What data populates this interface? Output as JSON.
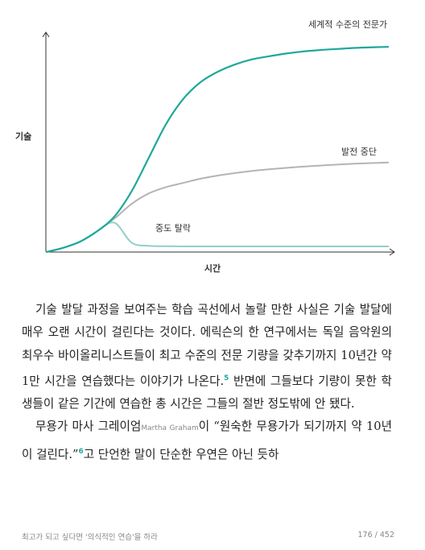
{
  "chart_data": {
    "type": "line",
    "title": "",
    "xlabel": "시간",
    "ylabel": "기술",
    "x": [
      0,
      0.05,
      0.1,
      0.15,
      0.2,
      0.25,
      0.3,
      0.35,
      0.4,
      0.45,
      0.5,
      0.55,
      0.6,
      0.65,
      0.7,
      0.75,
      0.8,
      0.85,
      0.9,
      0.95,
      1.0
    ],
    "series": [
      {
        "name": "세계적 수준의 전문가",
        "color": "#1fa89a",
        "values": [
          0,
          0.02,
          0.05,
          0.1,
          0.17,
          0.29,
          0.45,
          0.61,
          0.73,
          0.81,
          0.86,
          0.895,
          0.92,
          0.935,
          0.948,
          0.958,
          0.965,
          0.97,
          0.975,
          0.978,
          0.98
        ]
      },
      {
        "name": "발전 중단",
        "color": "#b4b4b4",
        "values": [
          0,
          0.02,
          0.05,
          0.1,
          0.16,
          0.23,
          0.28,
          0.31,
          0.33,
          0.35,
          0.365,
          0.377,
          0.387,
          0.395,
          0.402,
          0.408,
          0.413,
          0.418,
          0.422,
          0.425,
          0.428
        ]
      },
      {
        "name": "중도 탈락",
        "color": "#8fd0c8",
        "values": [
          0,
          0.02,
          0.05,
          0.1,
          0.14,
          0.045,
          0.03,
          0.028,
          0.027,
          0.027,
          0.027,
          0.027,
          0.027,
          0.027,
          0.027,
          0.027,
          0.027,
          0.027,
          0.027,
          0.027,
          0.027
        ]
      }
    ],
    "xlim": [
      0,
      1
    ],
    "ylim": [
      0,
      1.05
    ],
    "grid": false
  },
  "body": {
    "p1": "기술 발달 과정을 보여주는 학습 곡선에서 놀랄 만한 사실은 기술 발달에 매우 오랜 시간이 걸린다는 것이다. 에릭슨의 한 연구에서는 독일 음악원의 최우수 바이올리니스트들이 최고 수준의 전문 기량을 갖추기까지 10년간 약 1만 시간을 연습했다는 이야기가 나온다.",
    "fn1": "5",
    "p1b": " 반면에 그들보다 기량이 못한 학생들이 같은 기간에 연습한 총 시간은 그들의 절반 정도밖에 안 됐다.",
    "p2a": "무용가 마사 그레이엄",
    "p2_gloss": "Martha Graham",
    "p2b": "이 “원숙한 무용가가 되기까지 약 10년이 걸린다.”",
    "fn2": "6",
    "p2c": "고 단언한 말이 단순한 우연은 아닌 듯하"
  },
  "footer": {
    "book_title": "최고가 되고 싶다면 '의식적인 연습'을 하라",
    "page_indicator": "176 / 452"
  }
}
